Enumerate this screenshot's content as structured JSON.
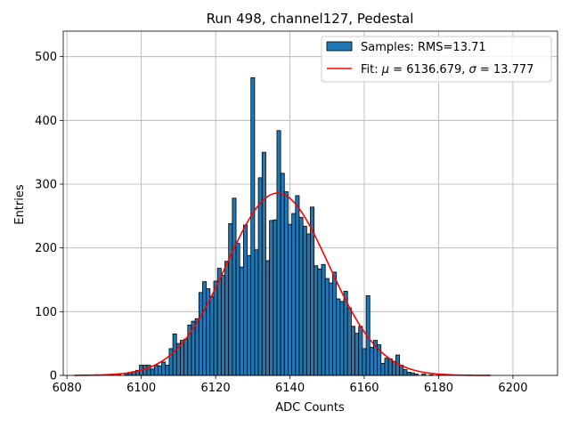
{
  "chart_data": {
    "type": "bar",
    "title": "Run 498, channel127, Pedestal",
    "xlabel": "ADC Counts",
    "ylabel": "Entries",
    "xlim": [
      6079,
      6212
    ],
    "ylim": [
      0,
      540
    ],
    "xticks": [
      6080,
      6100,
      6120,
      6140,
      6160,
      6180,
      6200
    ],
    "yticks": [
      0,
      100,
      200,
      300,
      400,
      500
    ],
    "grid": true,
    "legend_position": "top-right",
    "colors": {
      "bar_fill": "#1f77b4",
      "bar_edge": "#000000",
      "fit_line": "#ff0000"
    },
    "histogram": {
      "name": "Samples: RMS=13.71",
      "x": [
        6088,
        6092,
        6094,
        6096,
        6097,
        6098,
        6099,
        6100,
        6101,
        6102,
        6103,
        6104,
        6105,
        6106,
        6107,
        6108,
        6109,
        6110,
        6111,
        6112,
        6113,
        6114,
        6115,
        6116,
        6117,
        6118,
        6119,
        6120,
        6121,
        6122,
        6123,
        6124,
        6125,
        6126,
        6127,
        6128,
        6129,
        6130,
        6131,
        6132,
        6133,
        6134,
        6135,
        6136,
        6137,
        6138,
        6139,
        6140,
        6141,
        6142,
        6143,
        6144,
        6145,
        6146,
        6147,
        6148,
        6149,
        6150,
        6151,
        6152,
        6153,
        6154,
        6155,
        6156,
        6157,
        6158,
        6159,
        6160,
        6161,
        6162,
        6163,
        6164,
        6165,
        6166,
        6167,
        6168,
        6169,
        6170,
        6171,
        6172,
        6173,
        6174,
        6176,
        6178,
        6180
      ],
      "values": [
        1,
        1,
        2,
        3,
        4,
        6,
        8,
        16,
        16,
        16,
        10,
        16,
        15,
        21,
        16,
        42,
        65,
        50,
        55,
        57,
        79,
        85,
        89,
        130,
        147,
        136,
        124,
        148,
        168,
        157,
        179,
        238,
        278,
        207,
        170,
        236,
        188,
        467,
        197,
        310,
        350,
        180,
        243,
        244,
        384,
        317,
        288,
        237,
        254,
        282,
        248,
        234,
        222,
        264,
        172,
        167,
        174,
        152,
        145,
        162,
        120,
        116,
        132,
        106,
        77,
        66,
        77,
        42,
        125,
        44,
        55,
        48,
        19,
        27,
        26,
        22,
        32,
        16,
        9,
        5,
        4,
        2,
        2,
        1,
        1
      ]
    },
    "fit": {
      "name": "Fit: $\\mu$ = 6136.679, $\\sigma$ = 13.777",
      "mu": 6136.679,
      "sigma": 13.777,
      "amplitude": 286,
      "x_range": [
        6082,
        6194
      ]
    }
  }
}
